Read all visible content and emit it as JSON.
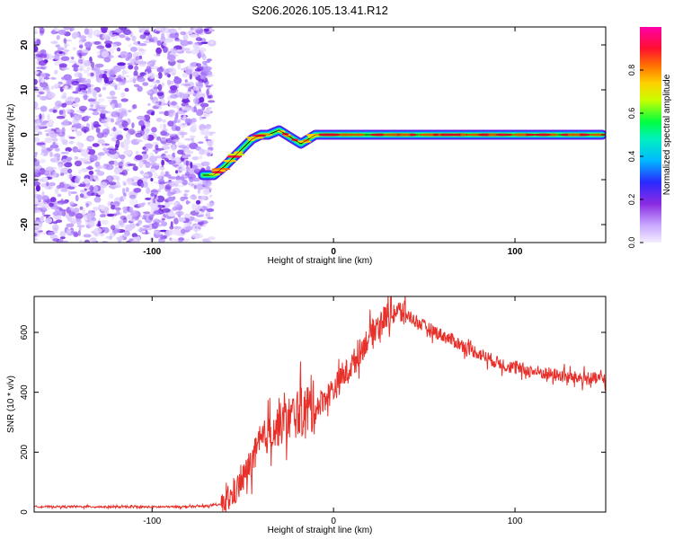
{
  "title": "S206.2026.105.13.41.R12",
  "chart_data": [
    {
      "type": "heatmap",
      "xlabel": "Height of straight line (km)",
      "ylabel": "Frequency (Hz)",
      "xlim": [
        -165,
        150
      ],
      "ylim": [
        -24,
        24
      ],
      "xticks": [
        -100,
        0,
        100
      ],
      "xtick_labels": [
        "-100",
        "0",
        "100"
      ],
      "yticks": [
        -20,
        -10,
        0,
        10,
        20
      ],
      "ytick_labels": [
        "-20",
        "-10",
        "0",
        "10",
        "20"
      ],
      "noise_region_x": [
        -165,
        -67
      ],
      "track": {
        "x": [
          -72,
          -66,
          -60,
          -55,
          -50,
          -45,
          -40,
          -36,
          -30,
          -26,
          -22,
          -18,
          -14,
          -10,
          -6,
          0,
          10,
          20,
          40,
          60,
          80,
          100,
          120,
          140,
          148
        ],
        "y": [
          -9,
          -9,
          -7,
          -5,
          -3,
          -1,
          0,
          0,
          1,
          0,
          -1,
          -2,
          -1,
          0,
          0,
          0,
          0,
          0,
          0,
          0,
          0,
          0,
          0,
          0,
          0
        ]
      },
      "colorbar": {
        "label": "Normalized spectral amplitude",
        "range": [
          0,
          1
        ],
        "ticks": [
          0.0,
          0.2,
          0.4,
          0.6,
          0.8
        ],
        "tick_labels": [
          "0.0",
          "0.2",
          "0.4",
          "0.6",
          "0.8"
        ],
        "colors": [
          "#f2eaff",
          "#8a2be2",
          "#0033ff",
          "#00e0ff",
          "#00ff40",
          "#ffff00",
          "#ff6600",
          "#ff0033",
          "#ff00aa"
        ]
      }
    },
    {
      "type": "line",
      "xlabel": "Height of straight line (km)",
      "ylabel": "SNR (10 * v/v)",
      "xlim": [
        -165,
        150
      ],
      "ylim": [
        0,
        720
      ],
      "xticks": [
        -100,
        0,
        100
      ],
      "xtick_labels": [
        "-100",
        "0",
        "100"
      ],
      "yticks": [
        0,
        200,
        400,
        600
      ],
      "ytick_labels": [
        "0",
        "200",
        "400",
        "600"
      ],
      "color": "#e8302a",
      "series": [
        {
          "name": "SNR",
          "x": [
            -165,
            -140,
            -120,
            -100,
            -80,
            -70,
            -62,
            -58,
            -55,
            -50,
            -45,
            -40,
            -35,
            -30,
            -25,
            -20,
            -15,
            -10,
            -5,
            0,
            5,
            10,
            15,
            20,
            25,
            30,
            35,
            40,
            45,
            50,
            60,
            70,
            80,
            90,
            100,
            110,
            120,
            130,
            140,
            150
          ],
          "y": [
            18,
            18,
            17,
            17,
            18,
            20,
            25,
            40,
            60,
            110,
            170,
            230,
            270,
            290,
            310,
            330,
            340,
            350,
            380,
            410,
            450,
            490,
            540,
            590,
            630,
            660,
            670,
            660,
            640,
            620,
            590,
            560,
            530,
            500,
            480,
            470,
            460,
            450,
            445,
            445
          ]
        }
      ]
    }
  ]
}
